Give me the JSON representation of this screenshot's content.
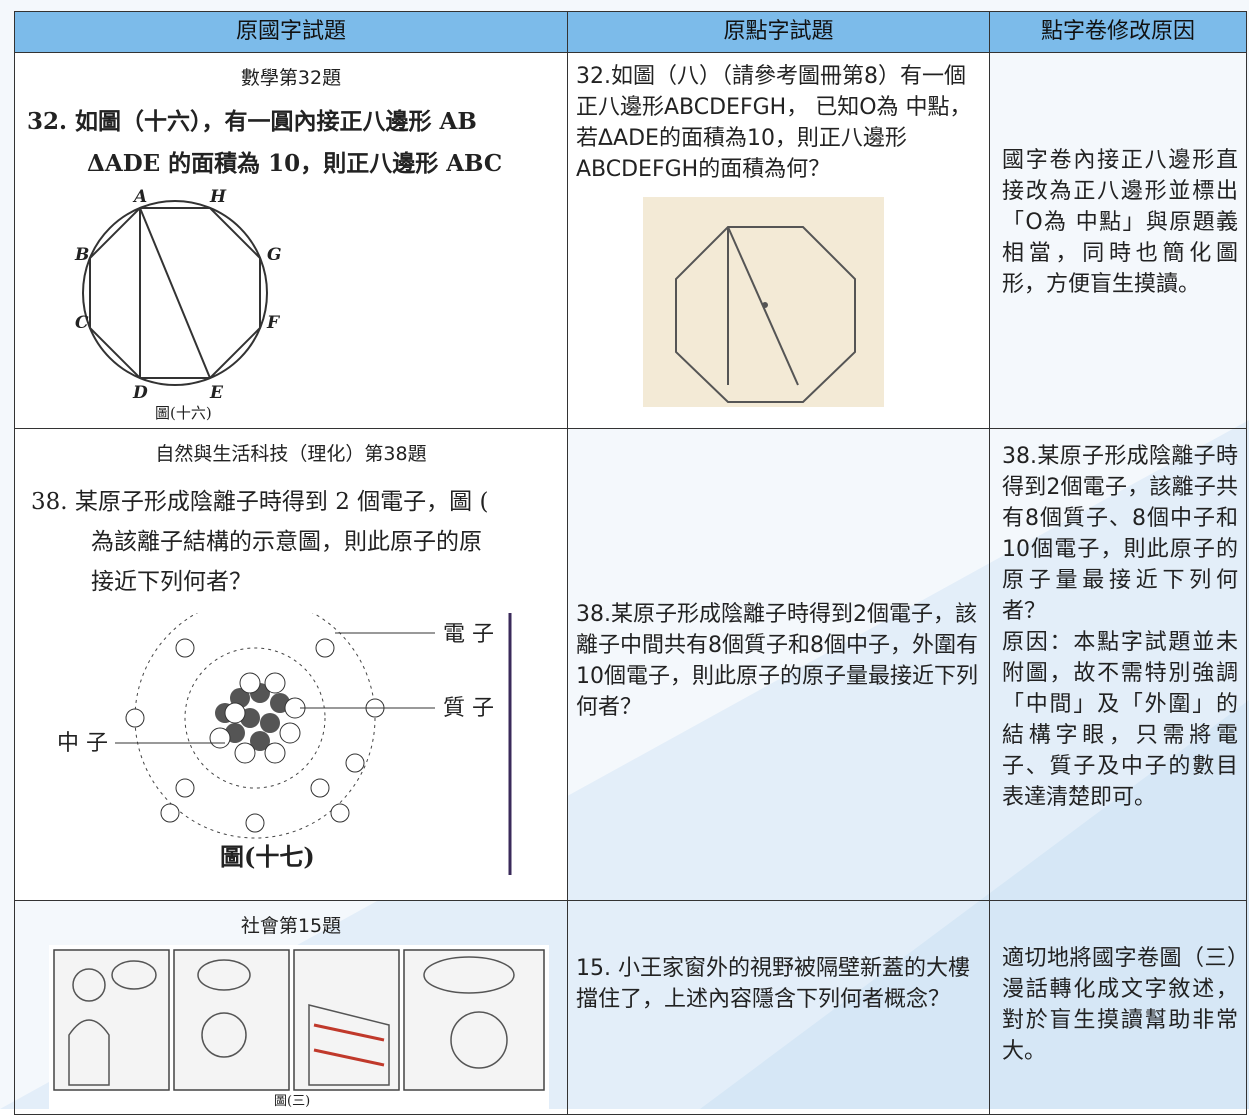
{
  "header": [
    "原國字試題",
    "原點字試題",
    "點字卷修改原因"
  ],
  "rows": [
    {
      "subject": "數學第32題",
      "original_lines": [
        "32.  如圖（十六），有一圓內接正八邊形 AB",
        "ΔADE 的面積為 10，則正八邊形 ABC"
      ],
      "figure_labels": [
        "A",
        "H",
        "B",
        "G",
        "C",
        "F",
        "D",
        "E"
      ],
      "figure_caption": "圖(十六)",
      "braille": "32.如圖（八）（請參考圖冊第8）有一個正八邊形ABCDEFGH， 已知O為 中點，若ΔADE的面積為10，則正八邊形ABCDEFGH的面積為何？",
      "reason": "國字卷內接正八邊形直接改為正八邊形並標出「O為 中點」與原題義相當，同時也簡化圖形，方便盲生摸讀。"
    },
    {
      "subject": "自然與生活科技（理化）第38題",
      "original_lines": [
        "38.  某原子形成陰離子時得到 2 個電子，圖 (",
        "為該離子結構的示意圖，則此原子的原",
        "接近下列何者？"
      ],
      "figure_labels": [
        "電 子",
        "質 子",
        "中 子"
      ],
      "figure_caption": "圖(十七)",
      "braille": "38.某原子形成陰離子時得到2個電子，該離子中間共有8個質子和8個中子，外圍有10個電子，則此原子的原子量最接近下列何者？",
      "reason": "38.某原子形成陰離子時得到2個電子，該離子共有8個質子、8個中子和10個電子，則此原子的原子量最接近下列何者？\n原因：本點字試題並未附圖，故不需特別強調「中間」及「外圍」的結構字眼，只需將電子、質子及中子的數目表達清楚即可。"
    },
    {
      "subject": "社會第15題",
      "figure_caption": "圖(三)",
      "braille": "15. 小王家窗外的視野被隔壁新蓋的大樓擋住了，上述內容隱含下列何者概念？",
      "reason": "適切地將國字卷圖（三）漫話轉化成文字敘述，對於盲生摸讀幫助非常大。"
    }
  ]
}
